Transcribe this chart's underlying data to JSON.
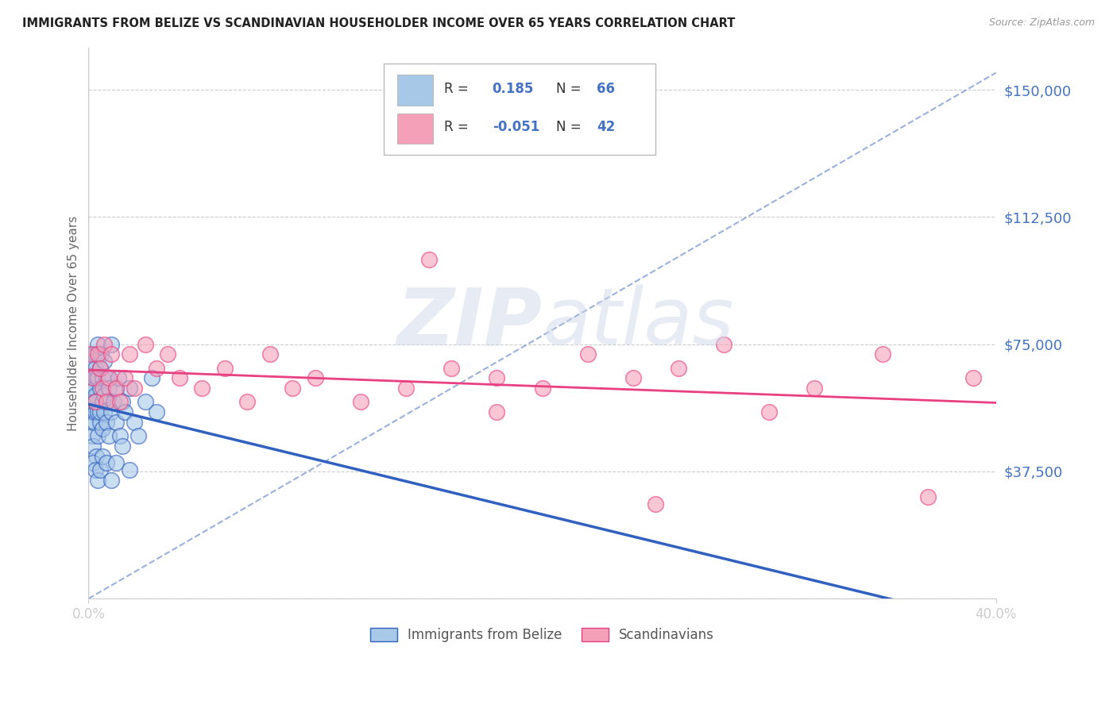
{
  "title": "IMMIGRANTS FROM BELIZE VS SCANDINAVIAN HOUSEHOLDER INCOME OVER 65 YEARS CORRELATION CHART",
  "source": "Source: ZipAtlas.com",
  "ylabel": "Householder Income Over 65 years",
  "xlim": [
    0.0,
    0.4
  ],
  "ylim": [
    0,
    162500
  ],
  "yticks": [
    0,
    37500,
    75000,
    112500,
    150000
  ],
  "ytick_labels": [
    "",
    "$37,500",
    "$75,000",
    "$112,500",
    "$150,000"
  ],
  "background_color": "#ffffff",
  "grid_color": "#cccccc",
  "blue_color": "#a8c8e8",
  "pink_color": "#f4a0b8",
  "blue_line_color": "#3060c0",
  "pink_line_color": "#e84080",
  "dash_line_color": "#7090d0",
  "label1": "Immigrants from Belize",
  "label2": "Scandinavians",
  "watermark_zip": "ZIP",
  "watermark_atlas": "atlas",
  "belize_x": [
    0.0005,
    0.0008,
    0.001,
    0.001,
    0.0012,
    0.0015,
    0.0015,
    0.0018,
    0.002,
    0.002,
    0.002,
    0.002,
    0.0022,
    0.0025,
    0.0025,
    0.003,
    0.003,
    0.003,
    0.003,
    0.003,
    0.0032,
    0.0035,
    0.004,
    0.004,
    0.004,
    0.004,
    0.005,
    0.005,
    0.005,
    0.005,
    0.0055,
    0.006,
    0.006,
    0.006,
    0.007,
    0.007,
    0.007,
    0.008,
    0.008,
    0.009,
    0.009,
    0.01,
    0.01,
    0.011,
    0.012,
    0.012,
    0.013,
    0.014,
    0.015,
    0.016,
    0.018,
    0.02,
    0.022,
    0.025,
    0.028,
    0.03,
    0.002,
    0.003,
    0.004,
    0.005,
    0.006,
    0.008,
    0.01,
    0.012,
    0.015,
    0.018
  ],
  "belize_y": [
    55000,
    62000,
    70000,
    58000,
    52000,
    48000,
    62000,
    72000,
    65000,
    55000,
    58000,
    45000,
    70000,
    52000,
    62000,
    68000,
    55000,
    60000,
    72000,
    58000,
    65000,
    42000,
    65000,
    55000,
    75000,
    48000,
    62000,
    52000,
    68000,
    55000,
    72000,
    50000,
    58000,
    65000,
    60000,
    55000,
    70000,
    52000,
    65000,
    62000,
    48000,
    75000,
    55000,
    58000,
    62000,
    52000,
    65000,
    48000,
    58000,
    55000,
    62000,
    52000,
    48000,
    58000,
    65000,
    55000,
    40000,
    38000,
    35000,
    38000,
    42000,
    40000,
    35000,
    40000,
    45000,
    38000
  ],
  "scand_x": [
    0.001,
    0.002,
    0.003,
    0.004,
    0.005,
    0.006,
    0.007,
    0.008,
    0.009,
    0.01,
    0.012,
    0.014,
    0.016,
    0.018,
    0.02,
    0.025,
    0.03,
    0.035,
    0.04,
    0.05,
    0.06,
    0.07,
    0.08,
    0.09,
    0.1,
    0.12,
    0.14,
    0.16,
    0.18,
    0.2,
    0.22,
    0.24,
    0.26,
    0.28,
    0.3,
    0.32,
    0.35,
    0.37,
    0.39,
    0.15,
    0.25,
    0.18
  ],
  "scand_y": [
    72000,
    65000,
    58000,
    72000,
    68000,
    62000,
    75000,
    58000,
    65000,
    72000,
    62000,
    58000,
    65000,
    72000,
    62000,
    75000,
    68000,
    72000,
    65000,
    62000,
    68000,
    58000,
    72000,
    62000,
    65000,
    58000,
    62000,
    68000,
    55000,
    62000,
    72000,
    65000,
    68000,
    75000,
    55000,
    62000,
    72000,
    30000,
    65000,
    100000,
    28000,
    65000
  ]
}
